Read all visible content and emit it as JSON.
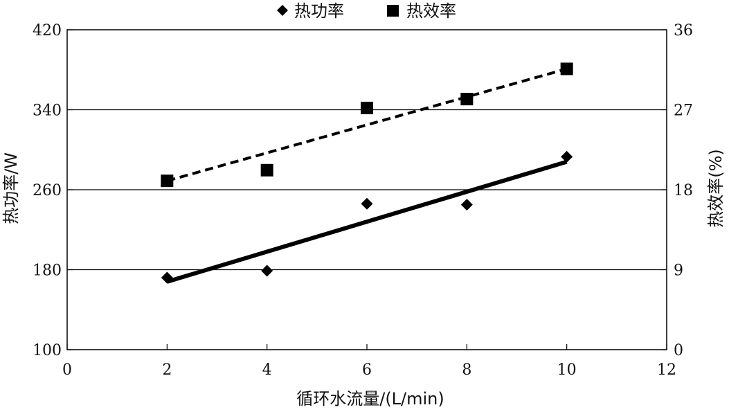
{
  "chart_data": {
    "type": "scatter",
    "xlabel": "循环水流量/(L/min)",
    "ylabel_left": "热功率/W",
    "ylabel_right": "热效率(%)",
    "xlim": [
      0,
      12
    ],
    "ylim_left": [
      100,
      420
    ],
    "ylim_right": [
      0,
      36
    ],
    "x_ticks": [
      "0",
      "2",
      "4",
      "6",
      "8",
      "10",
      "12"
    ],
    "y_left_ticks": [
      "100",
      "180",
      "260",
      "340",
      "420"
    ],
    "y_right_ticks": [
      "0",
      "9",
      "18",
      "27",
      "36"
    ],
    "grid": "horizontal",
    "legend": "top-center",
    "series": [
      {
        "name": "热功率",
        "axis": "left",
        "marker": "diamond",
        "x": [
          2,
          4,
          6,
          8,
          10
        ],
        "y": [
          172,
          179,
          246,
          245,
          293
        ],
        "trendline": {
          "style": "solid",
          "from": [
            2,
            168
          ],
          "to": [
            10,
            288
          ]
        }
      },
      {
        "name": "热效率",
        "axis": "right",
        "marker": "square",
        "x": [
          2,
          4,
          6,
          8,
          10
        ],
        "y": [
          19.0,
          20.2,
          27.2,
          28.2,
          31.6
        ],
        "trendline": {
          "style": "dashed",
          "from": [
            2,
            19.0
          ],
          "to": [
            10,
            31.6
          ]
        }
      }
    ],
    "colors": {
      "marks": "#000000",
      "grid": "#000000"
    }
  }
}
